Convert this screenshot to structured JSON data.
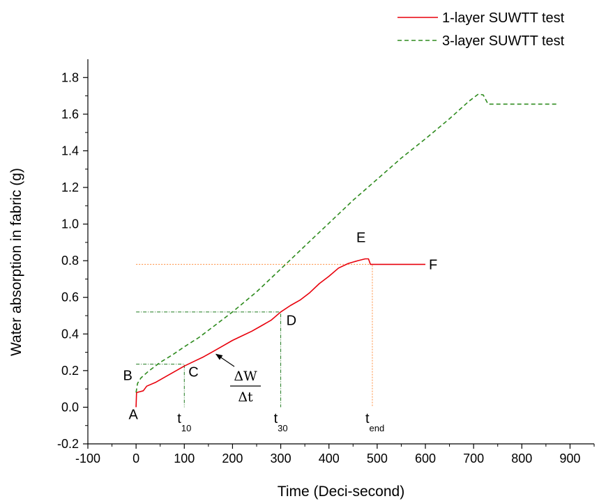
{
  "chart_data": {
    "type": "line",
    "title": "",
    "xlabel": "Time (Deci-second)",
    "ylabel": "Water absorption in fabric (g)",
    "xlim": [
      -100,
      950
    ],
    "ylim": [
      -0.2,
      1.9
    ],
    "grid": false,
    "legend_position": "top-right",
    "x_ticks": [
      "-100",
      "0",
      "100",
      "200",
      "300",
      "400",
      "500",
      "600",
      "700",
      "800",
      "900"
    ],
    "y_ticks": [
      "-0.2",
      "0.0",
      "0.2",
      "0.4",
      "0.6",
      "0.8",
      "1.0",
      "1.2",
      "1.4",
      "1.6",
      "1.8"
    ],
    "series": [
      {
        "name": "1-layer SUWTT test",
        "color": "#e8000b",
        "style": "solid",
        "points": [
          [
            0,
            0.0
          ],
          [
            1,
            0.08
          ],
          [
            8,
            0.085
          ],
          [
            15,
            0.09
          ],
          [
            22,
            0.115
          ],
          [
            40,
            0.135
          ],
          [
            60,
            0.165
          ],
          [
            80,
            0.195
          ],
          [
            100,
            0.225
          ],
          [
            120,
            0.25
          ],
          [
            140,
            0.275
          ],
          [
            160,
            0.305
          ],
          [
            180,
            0.335
          ],
          [
            200,
            0.365
          ],
          [
            220,
            0.39
          ],
          [
            240,
            0.415
          ],
          [
            260,
            0.445
          ],
          [
            280,
            0.475
          ],
          [
            300,
            0.52
          ],
          [
            320,
            0.555
          ],
          [
            340,
            0.585
          ],
          [
            360,
            0.625
          ],
          [
            380,
            0.675
          ],
          [
            400,
            0.715
          ],
          [
            420,
            0.76
          ],
          [
            440,
            0.785
          ],
          [
            460,
            0.8
          ],
          [
            475,
            0.81
          ],
          [
            482,
            0.81
          ],
          [
            486,
            0.78
          ],
          [
            500,
            0.78
          ],
          [
            550,
            0.78
          ],
          [
            600,
            0.78
          ]
        ]
      },
      {
        "name": "3-layer SUWTT test",
        "color": "#2e8b1e",
        "style": "dashed",
        "points": [
          [
            0,
            0.08
          ],
          [
            3,
            0.13
          ],
          [
            10,
            0.16
          ],
          [
            25,
            0.195
          ],
          [
            50,
            0.245
          ],
          [
            75,
            0.285
          ],
          [
            100,
            0.33
          ],
          [
            130,
            0.38
          ],
          [
            160,
            0.44
          ],
          [
            200,
            0.52
          ],
          [
            250,
            0.63
          ],
          [
            300,
            0.755
          ],
          [
            350,
            0.88
          ],
          [
            400,
            1.005
          ],
          [
            450,
            1.13
          ],
          [
            500,
            1.245
          ],
          [
            550,
            1.36
          ],
          [
            600,
            1.465
          ],
          [
            650,
            1.575
          ],
          [
            690,
            1.67
          ],
          [
            710,
            1.71
          ],
          [
            720,
            1.705
          ],
          [
            730,
            1.655
          ],
          [
            800,
            1.655
          ],
          [
            875,
            1.655
          ]
        ]
      }
    ],
    "reference_lines": [
      {
        "color": "#ff8c3a",
        "from": [
          0,
          0.78
        ],
        "corner": [
          490,
          0.78
        ],
        "to": [
          490,
          0.0
        ]
      },
      {
        "color": "#1f7a1f",
        "from": [
          0,
          0.52
        ],
        "corner": [
          300,
          0.52
        ],
        "to": [
          300,
          0.0
        ]
      },
      {
        "color": "#1f7a1f",
        "from": [
          0,
          0.235
        ],
        "corner": [
          100,
          0.235
        ],
        "to": [
          100,
          0.0
        ]
      }
    ],
    "point_annotations": [
      {
        "label": "A",
        "x": 0,
        "y": 0.0
      },
      {
        "label": "B",
        "x": 0,
        "y": 0.08
      },
      {
        "label": "C",
        "x": 100,
        "y": 0.235
      },
      {
        "label": "D",
        "x": 300,
        "y": 0.52
      },
      {
        "label": "E",
        "x": 480,
        "y": 0.81
      },
      {
        "label": "F",
        "x": 600,
        "y": 0.78
      }
    ],
    "time_markers": [
      {
        "main": "t",
        "sub": "10",
        "x": 100
      },
      {
        "main": "t",
        "sub": "30",
        "x": 300
      },
      {
        "main": "t",
        "sub": "end",
        "x": 490
      }
    ],
    "slope_annotation": {
      "numerator": "ΔW",
      "denominator": "Δt",
      "arrow_target": [
        160,
        0.305
      ]
    }
  }
}
